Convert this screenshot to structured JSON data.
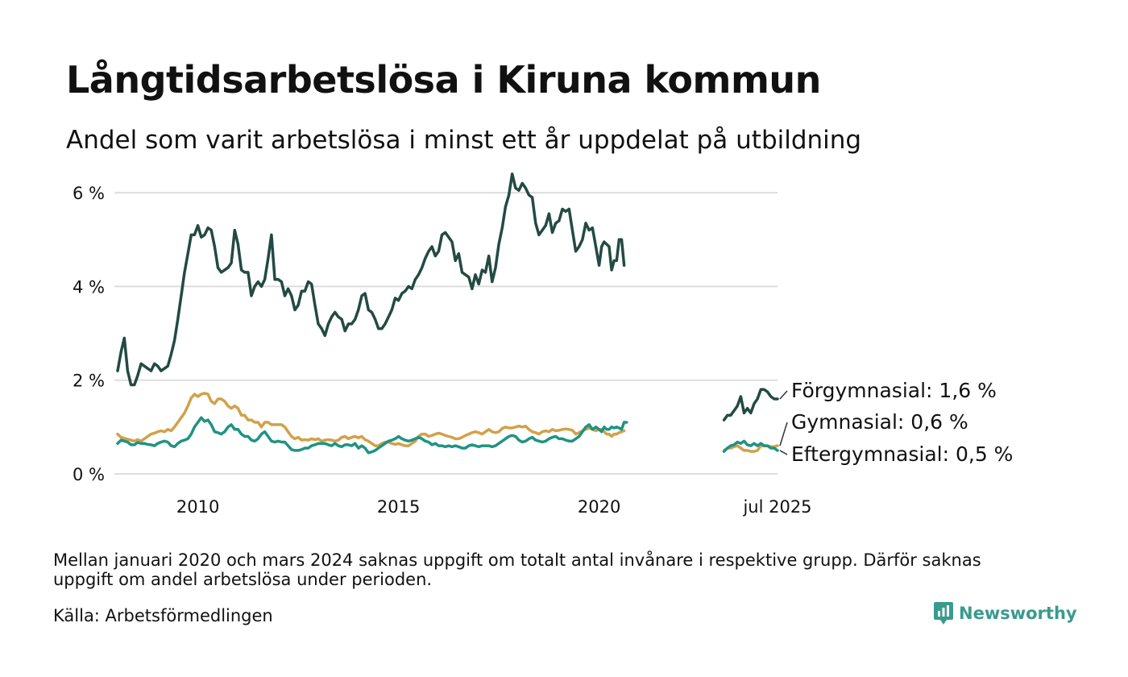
{
  "title": "Långtidsarbetslösa i Kiruna kommun",
  "subtitle": "Andel som varit arbetslösa i minst ett år uppdelat på utbildning",
  "note": "Mellan januari 2020 och mars 2024 saknas uppgift om totalt antal invånare i respektive grupp. Därför saknas uppgift om andel arbetslösa under perioden.",
  "source": "Källa: Arbetsförmedlingen",
  "logo": {
    "text": "Newsworthy"
  },
  "chart_data": {
    "type": "line",
    "y_unit": "%",
    "ylim": [
      0,
      6.5
    ],
    "y_ticks": [
      0,
      2,
      4,
      6
    ],
    "y_tick_labels": [
      "0 %",
      "2 %",
      "4 %",
      "6 %"
    ],
    "x_ticks": [
      {
        "x": "2010-01",
        "label": "2010"
      },
      {
        "x": "2015-01",
        "label": "2015"
      },
      {
        "x": "2020-01",
        "label": "2020"
      },
      {
        "x": "2025-07",
        "label": "jul 2025"
      }
    ],
    "grid": true,
    "x_range": [
      "2008-01",
      "2025-07"
    ],
    "gap": [
      "2020-01",
      "2024-03"
    ],
    "series": [
      {
        "name": "Förgymnasial",
        "end_label": "Förgymnasial: 1,6 %",
        "color": "#234a42",
        "segments": [
          {
            "start": "2008-01",
            "values": [
              2.2,
              2.6,
              2.9,
              2.2,
              1.9,
              1.9,
              2.1,
              2.35,
              2.3,
              2.25,
              2.2,
              2.35,
              2.3,
              2.2,
              2.25,
              2.3,
              2.55,
              2.85,
              3.3,
              3.8,
              4.3,
              4.7,
              5.1,
              5.1,
              5.3,
              5.05,
              5.1,
              5.25,
              5.2,
              4.85,
              4.4,
              4.3,
              4.35,
              4.4,
              4.5,
              5.2,
              4.9,
              4.35,
              4.3,
              4.3,
              3.8,
              4.0,
              4.1,
              4.0,
              4.15,
              4.6,
              5.1,
              4.15,
              4.15,
              4.1,
              3.8,
              3.95,
              3.8,
              3.5,
              3.6,
              3.9,
              3.9,
              4.1,
              4.05,
              3.6,
              3.2,
              3.1,
              2.95,
              3.2,
              3.35,
              3.45,
              3.35,
              3.3,
              3.05,
              3.2,
              3.2,
              3.3,
              3.5,
              3.8,
              3.85,
              3.5,
              3.45,
              3.3,
              3.1,
              3.1,
              3.2,
              3.35,
              3.5,
              3.75,
              3.7,
              3.85,
              3.9,
              4.0,
              3.95,
              4.15,
              4.25,
              4.4,
              4.6,
              4.75,
              4.85,
              4.65,
              4.75,
              5.1,
              5.15,
              5.05,
              4.95,
              4.55,
              4.7,
              4.3,
              4.25,
              4.2,
              3.95,
              4.25,
              4.05,
              4.35,
              4.3,
              4.65,
              4.1,
              4.4,
              4.9,
              5.25,
              5.7,
              5.95,
              6.4,
              6.1,
              6.05,
              6.2,
              6.1,
              5.95,
              5.9,
              5.35,
              5.1,
              5.2,
              5.3,
              5.55,
              5.15,
              5.35,
              5.4,
              5.65,
              5.6,
              5.65,
              5.2,
              4.75,
              4.85,
              5.0,
              5.35,
              5.2,
              5.25,
              4.85,
              4.45,
              4.85,
              4.95,
              4.9,
              4.85,
              4.35,
              4.55,
              4.55,
              5.0,
              5.0,
              4.45
            ]
          },
          {
            "start": "2024-03",
            "values": [
              1.15,
              1.25,
              1.25,
              1.35,
              1.45,
              1.65,
              1.3,
              1.4,
              1.3,
              1.5,
              1.6,
              1.8,
              1.8,
              1.75,
              1.65,
              1.6,
              1.6
            ]
          }
        ]
      },
      {
        "name": "Gymnasial",
        "end_label": "Gymnasial: 0,6 %",
        "color": "#d1a14a",
        "segments": [
          {
            "start": "2008-01",
            "values": [
              0.85,
              0.78,
              0.76,
              0.74,
              0.72,
              0.7,
              0.73,
              0.7,
              0.75,
              0.8,
              0.85,
              0.87,
              0.9,
              0.92,
              0.9,
              0.95,
              0.92,
              1.0,
              1.1,
              1.2,
              1.3,
              1.45,
              1.62,
              1.7,
              1.65,
              1.7,
              1.72,
              1.7,
              1.55,
              1.5,
              1.6,
              1.6,
              1.55,
              1.45,
              1.4,
              1.45,
              1.4,
              1.25,
              1.25,
              1.15,
              1.15,
              1.1,
              1.1,
              1.0,
              1.1,
              1.1,
              1.05,
              1.05,
              1.05,
              1.05,
              1.0,
              0.9,
              0.8,
              0.75,
              0.78,
              0.72,
              0.73,
              0.72,
              0.75,
              0.73,
              0.75,
              0.7,
              0.72,
              0.73,
              0.72,
              0.7,
              0.72,
              0.78,
              0.8,
              0.75,
              0.78,
              0.8,
              0.77,
              0.8,
              0.73,
              0.7,
              0.65,
              0.6,
              0.6,
              0.65,
              0.68,
              0.68,
              0.65,
              0.63,
              0.65,
              0.62,
              0.6,
              0.6,
              0.65,
              0.7,
              0.8,
              0.85,
              0.85,
              0.8,
              0.82,
              0.85,
              0.87,
              0.85,
              0.82,
              0.8,
              0.78,
              0.75,
              0.75,
              0.78,
              0.82,
              0.85,
              0.88,
              0.9,
              0.88,
              0.85,
              0.9,
              0.95,
              0.9,
              0.88,
              0.9,
              0.97,
              1.0,
              0.98,
              0.98,
              1.0,
              1.02,
              1.0,
              1.02,
              0.95,
              0.9,
              0.88,
              0.85,
              0.9,
              0.92,
              0.9,
              0.95,
              0.92,
              0.93,
              0.95,
              0.96,
              0.95,
              0.93,
              0.85,
              0.88,
              0.92,
              0.95,
              0.98,
              0.95,
              0.92,
              0.95,
              0.95,
              0.9,
              0.85,
              0.85,
              0.8,
              0.85,
              0.85,
              0.88,
              0.9,
              0.92
            ]
          },
          {
            "start": "2024-03",
            "values": [
              0.5,
              0.55,
              0.55,
              0.58,
              0.6,
              0.55,
              0.5,
              0.5,
              0.48,
              0.48,
              0.5,
              0.6,
              0.6,
              0.6,
              0.58,
              0.58,
              0.6
            ]
          }
        ]
      },
      {
        "name": "Eftergymnasial",
        "end_label": "Eftergymnasial: 0,5 %",
        "color": "#1f9383",
        "segments": [
          {
            "start": "2008-01",
            "values": [
              0.65,
              0.72,
              0.7,
              0.68,
              0.62,
              0.62,
              0.67,
              0.65,
              0.65,
              0.63,
              0.62,
              0.6,
              0.65,
              0.68,
              0.7,
              0.68,
              0.6,
              0.58,
              0.65,
              0.7,
              0.72,
              0.75,
              0.85,
              1.0,
              1.1,
              1.2,
              1.12,
              1.15,
              1.05,
              0.9,
              0.88,
              0.85,
              0.9,
              1.0,
              1.05,
              0.95,
              0.95,
              0.85,
              0.8,
              0.8,
              0.72,
              0.7,
              0.75,
              0.85,
              0.9,
              0.8,
              0.7,
              0.68,
              0.7,
              0.68,
              0.68,
              0.6,
              0.52,
              0.5,
              0.5,
              0.52,
              0.55,
              0.55,
              0.6,
              0.62,
              0.65,
              0.65,
              0.65,
              0.62,
              0.6,
              0.65,
              0.6,
              0.58,
              0.62,
              0.62,
              0.6,
              0.65,
              0.55,
              0.6,
              0.55,
              0.45,
              0.47,
              0.5,
              0.55,
              0.6,
              0.65,
              0.7,
              0.72,
              0.75,
              0.8,
              0.75,
              0.72,
              0.7,
              0.72,
              0.75,
              0.78,
              0.75,
              0.7,
              0.68,
              0.62,
              0.65,
              0.6,
              0.6,
              0.58,
              0.6,
              0.58,
              0.6,
              0.58,
              0.55,
              0.55,
              0.6,
              0.62,
              0.6,
              0.58,
              0.6,
              0.6,
              0.6,
              0.58,
              0.6,
              0.65,
              0.7,
              0.75,
              0.8,
              0.82,
              0.8,
              0.72,
              0.68,
              0.7,
              0.75,
              0.78,
              0.72,
              0.7,
              0.68,
              0.7,
              0.75,
              0.78,
              0.8,
              0.75,
              0.75,
              0.72,
              0.7,
              0.7,
              0.75,
              0.8,
              0.9,
              1.0,
              1.05,
              0.95,
              1.0,
              0.95,
              0.9,
              1.0,
              0.95,
              0.95,
              1.0,
              0.98,
              1.0,
              0.98,
              0.95,
              1.1,
              1.1
            ]
          },
          {
            "start": "2024-03",
            "values": [
              0.48,
              0.55,
              0.6,
              0.62,
              0.68,
              0.65,
              0.7,
              0.62,
              0.6,
              0.65,
              0.6,
              0.65,
              0.6,
              0.6,
              0.55,
              0.55,
              0.5
            ]
          }
        ]
      }
    ]
  }
}
